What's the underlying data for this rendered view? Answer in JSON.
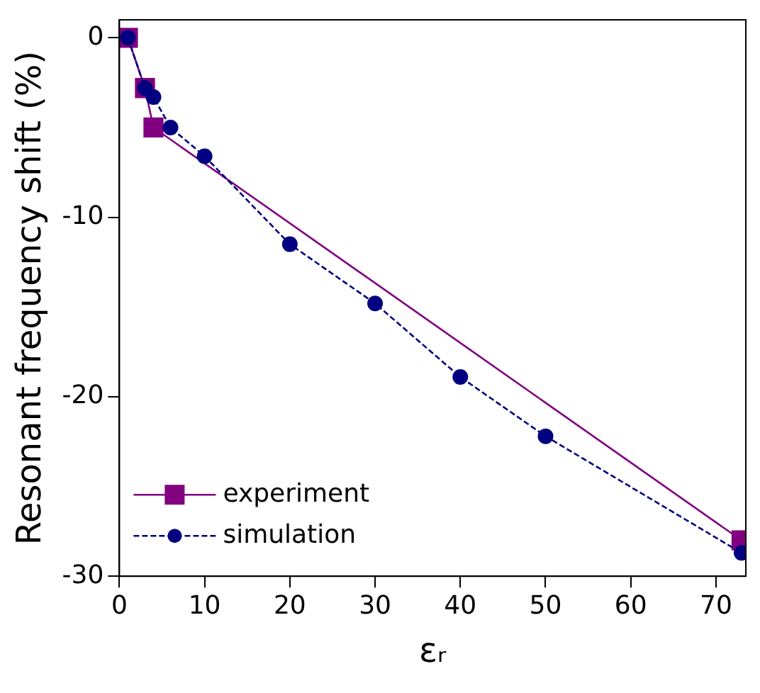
{
  "chart_data": {
    "type": "line",
    "xlabel": "εᵣ",
    "ylabel": "Resonant frequency shift (%)",
    "xlim": [
      0,
      73.5
    ],
    "xticks": [
      0,
      10,
      20,
      30,
      40,
      50,
      60,
      70
    ],
    "ylim": [
      -30,
      1
    ],
    "yticks": [
      -30,
      -20,
      -10,
      0
    ],
    "legend": "bottom left",
    "grid": false,
    "series": [
      {
        "name": "experiment",
        "color": "#800080",
        "marker": "square",
        "line_style": "solid",
        "x": [
          1,
          3,
          4,
          73
        ],
        "values": [
          0,
          -2.8,
          -5.0,
          -28.0
        ]
      },
      {
        "name": "simulation",
        "color": "#000080",
        "marker": "circle",
        "line_style": "dashed",
        "x": [
          1,
          3,
          4,
          6,
          10,
          20,
          30,
          40,
          50,
          73
        ],
        "values": [
          0,
          -2.8,
          -3.3,
          -5.0,
          -6.6,
          -11.5,
          -14.8,
          -18.9,
          -22.2,
          -28.7
        ]
      }
    ]
  }
}
